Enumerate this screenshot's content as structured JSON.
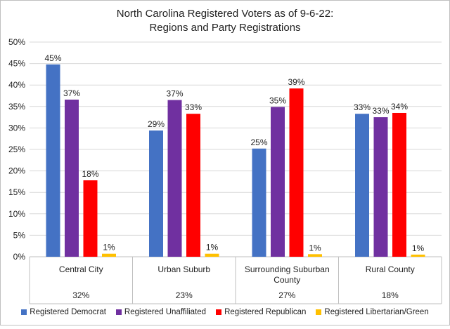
{
  "chart_data": {
    "type": "bar",
    "title_lines": [
      "North Carolina Registered Voters as of 9-6-22:",
      "Regions and Party Registrations"
    ],
    "ylim": [
      0,
      50
    ],
    "yticks": [
      "0%",
      "5%",
      "10%",
      "15%",
      "20%",
      "25%",
      "30%",
      "35%",
      "40%",
      "45%",
      "50%"
    ],
    "categories": [
      {
        "lines": [
          "Central City"
        ],
        "share": "32%"
      },
      {
        "lines": [
          "Urban Suburb"
        ],
        "share": "23%"
      },
      {
        "lines": [
          "Surrounding Suburban",
          "County"
        ],
        "share": "27%"
      },
      {
        "lines": [
          "Rural County"
        ],
        "share": "18%"
      }
    ],
    "series": [
      {
        "name": "Registered Democrat",
        "color": "#4472C4",
        "values": [
          44.8,
          29.4,
          25.2,
          33.3
        ],
        "labels": [
          "45%",
          "29%",
          "25%",
          "33%"
        ]
      },
      {
        "name": "Registered Unaffiliated",
        "color": "#7030A0",
        "values": [
          36.6,
          36.5,
          34.9,
          32.5
        ],
        "labels": [
          "37%",
          "37%",
          "35%",
          "33%"
        ]
      },
      {
        "name": "Registered Republican",
        "color": "#FF0000",
        "values": [
          17.8,
          33.3,
          39.2,
          33.5
        ],
        "labels": [
          "18%",
          "33%",
          "39%",
          "34%"
        ]
      },
      {
        "name": "Registered Libertarian/Green",
        "color": "#FFC000",
        "values": [
          0.7,
          0.7,
          0.6,
          0.5
        ],
        "labels": [
          "1%",
          "1%",
          "1%",
          "1%"
        ]
      }
    ]
  }
}
